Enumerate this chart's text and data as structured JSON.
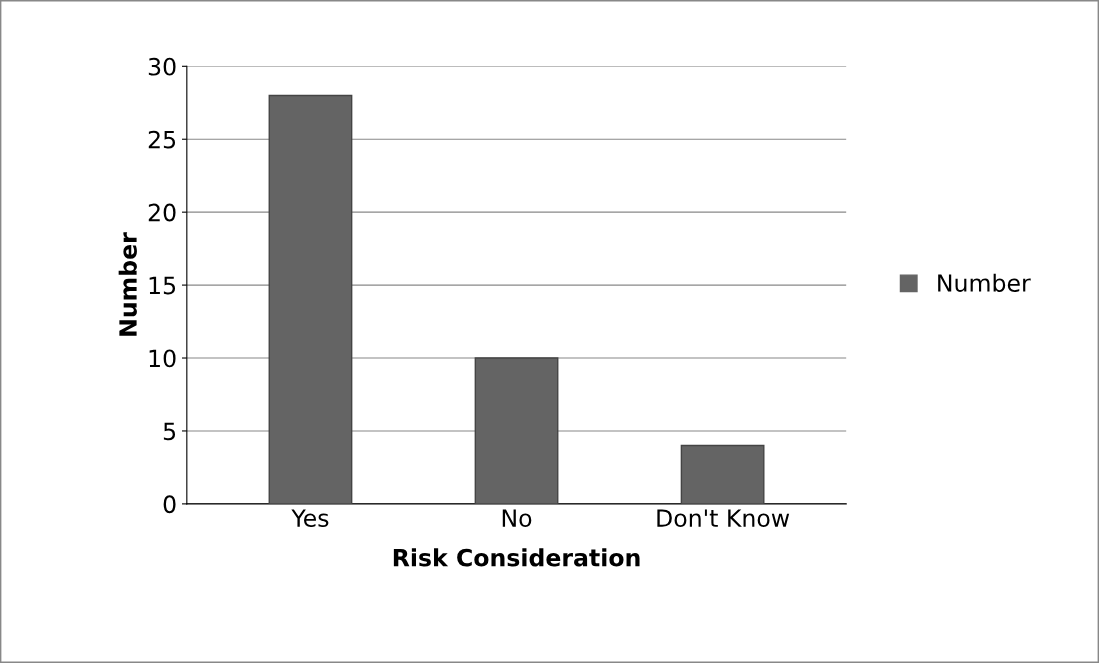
{
  "chart_data": {
    "type": "bar",
    "xlabel": "Risk Consideration",
    "ylabel": "Number",
    "categories": [
      "Yes",
      "No",
      "Don't Know"
    ],
    "series": [
      {
        "name": "Number",
        "color": "#646464",
        "values": [
          28,
          10,
          4
        ]
      }
    ],
    "ylim": [
      0,
      30
    ],
    "yticks": [
      0,
      5,
      10,
      15,
      20,
      25,
      30
    ],
    "grid": "y",
    "legend": "right"
  }
}
